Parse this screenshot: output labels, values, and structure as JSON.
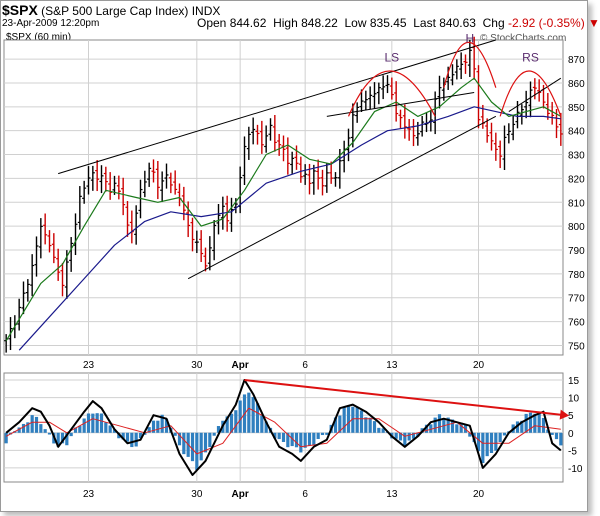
{
  "header": {
    "symbol": "$SPX",
    "name": "(S&P 500 Large Cap Index)",
    "exchange": "INDX",
    "timestamp": "23-Apr-2009 12:20pm",
    "quote": {
      "open_label": "Open",
      "open": "844.62",
      "high_label": "High",
      "high": "848.22",
      "low_label": "Low",
      "low": "835.45",
      "last_label": "Last",
      "last": "840.63",
      "chg_label": "Chg",
      "chg": "-2.92 (-0.35%)"
    },
    "chart_label": "$SPX (60 min)",
    "brand": "© StockCharts.com"
  },
  "colors": {
    "up_bar": "#000000",
    "down_bar": "#cc0000",
    "ma_short": "#1b7a1b",
    "ma_long": "#1a1a8c",
    "trendline": "#000000",
    "pattern": "#dd1111",
    "pattern_label": "#5a2d6e",
    "hist": "#2f7fbf",
    "macd_line": "#000000",
    "signal_line": "#dd2222",
    "arrow": "#dd1111",
    "grid": "#d0d0d0"
  },
  "chart_data": [
    {
      "type": "candlestick",
      "title": "$SPX (60 min)",
      "x_ticks": [
        "23",
        "30",
        "Apr",
        "6",
        "13",
        "20"
      ],
      "y_ticks": [
        750,
        760,
        770,
        780,
        790,
        800,
        810,
        820,
        830,
        840,
        850,
        860,
        870
      ],
      "ylim": [
        746,
        878
      ],
      "grid": true,
      "pattern_labels": [
        "LS",
        "H",
        "RS"
      ],
      "price_path": [
        [
          0,
          752
        ],
        [
          3,
          765
        ],
        [
          5,
          777
        ],
        [
          6,
          783
        ],
        [
          8,
          800
        ],
        [
          9,
          796
        ],
        [
          10,
          793
        ],
        [
          11,
          786
        ],
        [
          12,
          780
        ],
        [
          13,
          777
        ],
        [
          14,
          784
        ],
        [
          15,
          792
        ],
        [
          17,
          812
        ],
        [
          19,
          820
        ],
        [
          20,
          822
        ],
        [
          21,
          821
        ],
        [
          22,
          820
        ],
        [
          23,
          818
        ],
        [
          24,
          816
        ],
        [
          25,
          817
        ],
        [
          26,
          814
        ],
        [
          27,
          810
        ],
        [
          28,
          800
        ],
        [
          29,
          798
        ],
        [
          30,
          805
        ],
        [
          31,
          815
        ],
        [
          32,
          820
        ],
        [
          33,
          823
        ],
        [
          34,
          822
        ],
        [
          35,
          818
        ],
        [
          36,
          818
        ],
        [
          37,
          821
        ],
        [
          38,
          818
        ],
        [
          39,
          815
        ],
        [
          40,
          812
        ],
        [
          42,
          800
        ],
        [
          43,
          796
        ],
        [
          44,
          792
        ],
        [
          45,
          788
        ],
        [
          46,
          785
        ],
        [
          47,
          790
        ],
        [
          48,
          800
        ],
        [
          49,
          805
        ],
        [
          50,
          808
        ],
        [
          51,
          803
        ],
        [
          52,
          806
        ],
        [
          53,
          809
        ],
        [
          54,
          822
        ],
        [
          55,
          832
        ],
        [
          56,
          838
        ],
        [
          57,
          842
        ],
        [
          58,
          838
        ],
        [
          59,
          834
        ],
        [
          60,
          838
        ],
        [
          61,
          842
        ],
        [
          62,
          836
        ],
        [
          63,
          833
        ],
        [
          64,
          832
        ],
        [
          65,
          828
        ],
        [
          66,
          827
        ],
        [
          67,
          826
        ],
        [
          68,
          822
        ],
        [
          69,
          821
        ],
        [
          70,
          818
        ],
        [
          71,
          823
        ],
        [
          72,
          820
        ],
        [
          73,
          818
        ],
        [
          74,
          821
        ],
        [
          75,
          820
        ],
        [
          76,
          822
        ],
        [
          77,
          826
        ],
        [
          79,
          838
        ],
        [
          80,
          846
        ],
        [
          81,
          850
        ],
        [
          82,
          852
        ],
        [
          83,
          853
        ],
        [
          84,
          856
        ],
        [
          85,
          854
        ],
        [
          86,
          858
        ],
        [
          87,
          860
        ],
        [
          88,
          858
        ],
        [
          89,
          855
        ],
        [
          90,
          848
        ],
        [
          91,
          845
        ],
        [
          92,
          842
        ],
        [
          93,
          840
        ],
        [
          94,
          838
        ],
        [
          95,
          840
        ],
        [
          96,
          842
        ],
        [
          97,
          843
        ],
        [
          98,
          846
        ],
        [
          99,
          852
        ],
        [
          100,
          858
        ],
        [
          101,
          860
        ],
        [
          102,
          862
        ],
        [
          103,
          864
        ],
        [
          104,
          866
        ],
        [
          105,
          868
        ],
        [
          106,
          870
        ],
        [
          107,
          872
        ],
        [
          108,
          866
        ],
        [
          109,
          846
        ],
        [
          110,
          842
        ],
        [
          111,
          838
        ],
        [
          112,
          836
        ],
        [
          113,
          832
        ],
        [
          114,
          830
        ],
        [
          115,
          836
        ],
        [
          116,
          840
        ],
        [
          117,
          844
        ],
        [
          118,
          846
        ],
        [
          119,
          849
        ],
        [
          120,
          853
        ],
        [
          121,
          856
        ],
        [
          122,
          858
        ],
        [
          123,
          856
        ],
        [
          124,
          852
        ],
        [
          125,
          848
        ],
        [
          126,
          845
        ],
        [
          127,
          842
        ],
        [
          128,
          840
        ]
      ],
      "series": [
        {
          "name": "",
          "kind": "moving average (short)",
          "values": [
            [
              0,
              752
            ],
            [
              8,
              776
            ],
            [
              13,
              784
            ],
            [
              18,
              800
            ],
            [
              23,
              815
            ],
            [
              30,
              812
            ],
            [
              35,
              810
            ],
            [
              40,
              812
            ],
            [
              45,
              800
            ],
            [
              50,
              803
            ],
            [
              55,
              815
            ],
            [
              60,
              830
            ],
            [
              65,
              834
            ],
            [
              70,
              828
            ],
            [
              75,
              826
            ],
            [
              80,
              835
            ],
            [
              85,
              848
            ],
            [
              90,
              852
            ],
            [
              95,
              846
            ],
            [
              100,
              850
            ],
            [
              105,
              858
            ],
            [
              108,
              862
            ],
            [
              112,
              852
            ],
            [
              116,
              846
            ],
            [
              120,
              848
            ],
            [
              124,
              850
            ],
            [
              128,
              846
            ]
          ]
        },
        {
          "name": "",
          "kind": "moving average (long)",
          "values": [
            [
              3,
              748
            ],
            [
              10,
              762
            ],
            [
              18,
              778
            ],
            [
              25,
              792
            ],
            [
              32,
              802
            ],
            [
              38,
              806
            ],
            [
              45,
              804
            ],
            [
              52,
              806
            ],
            [
              60,
              818
            ],
            [
              68,
              823
            ],
            [
              75,
              826
            ],
            [
              82,
              834
            ],
            [
              88,
              840
            ],
            [
              95,
              842
            ],
            [
              102,
              846
            ],
            [
              108,
              850
            ],
            [
              113,
              848
            ],
            [
              118,
              846
            ],
            [
              124,
              846
            ],
            [
              128,
              845
            ]
          ]
        }
      ],
      "trendlines": [
        {
          "from": [
            12,
            822
          ],
          "to": [
            113,
            878
          ]
        },
        {
          "from": [
            42,
            778
          ],
          "to": [
            113,
            846
          ]
        },
        {
          "from": [
            74,
            846
          ],
          "to": [
            108,
            856
          ]
        },
        {
          "from": [
            116,
            848
          ],
          "to": [
            128,
            862
          ]
        }
      ]
    },
    {
      "type": "bar",
      "title": "",
      "x_ticks": [
        "23",
        "30",
        "Apr",
        "6",
        "13",
        "20"
      ],
      "y_ticks": [
        -10,
        -5,
        0,
        5,
        10,
        15
      ],
      "ylim": [
        -14,
        17
      ],
      "grid": true,
      "histogram": [
        [
          0,
          -3
        ],
        [
          2,
          1
        ],
        [
          4,
          2
        ],
        [
          6,
          5
        ],
        [
          8,
          3
        ],
        [
          10,
          -1
        ],
        [
          12,
          -4
        ],
        [
          14,
          -3
        ],
        [
          16,
          1
        ],
        [
          18,
          4
        ],
        [
          20,
          6
        ],
        [
          22,
          5
        ],
        [
          24,
          2
        ],
        [
          26,
          -1
        ],
        [
          28,
          -3
        ],
        [
          30,
          -4
        ],
        [
          32,
          0
        ],
        [
          34,
          3
        ],
        [
          36,
          5
        ],
        [
          38,
          2
        ],
        [
          40,
          -4
        ],
        [
          42,
          -7
        ],
        [
          44,
          -10
        ],
        [
          46,
          -6
        ],
        [
          48,
          -1
        ],
        [
          50,
          4
        ],
        [
          52,
          5
        ],
        [
          54,
          9
        ],
        [
          56,
          12
        ],
        [
          58,
          8
        ],
        [
          60,
          3
        ],
        [
          62,
          -1
        ],
        [
          64,
          -3
        ],
        [
          66,
          -4
        ],
        [
          68,
          -5
        ],
        [
          70,
          -4
        ],
        [
          72,
          -2
        ],
        [
          74,
          0
        ],
        [
          76,
          4
        ],
        [
          78,
          7
        ],
        [
          80,
          8
        ],
        [
          82,
          6
        ],
        [
          84,
          4
        ],
        [
          86,
          2
        ],
        [
          88,
          0
        ],
        [
          90,
          -2
        ],
        [
          92,
          -3
        ],
        [
          94,
          -2
        ],
        [
          96,
          1
        ],
        [
          98,
          3
        ],
        [
          100,
          5
        ],
        [
          102,
          4
        ],
        [
          104,
          3
        ],
        [
          106,
          2
        ],
        [
          108,
          -3
        ],
        [
          110,
          -8
        ],
        [
          112,
          -6
        ],
        [
          114,
          -3
        ],
        [
          116,
          1
        ],
        [
          118,
          3
        ],
        [
          120,
          5
        ],
        [
          122,
          6
        ],
        [
          124,
          4
        ],
        [
          126,
          -1
        ],
        [
          128,
          -3
        ]
      ],
      "series": [
        {
          "name": "",
          "kind": "MACD line",
          "values": [
            [
              0,
              0
            ],
            [
              3,
              3
            ],
            [
              6,
              7
            ],
            [
              8,
              6
            ],
            [
              10,
              2
            ],
            [
              12,
              -4
            ],
            [
              15,
              1
            ],
            [
              18,
              6
            ],
            [
              20,
              9
            ],
            [
              22,
              7
            ],
            [
              25,
              1
            ],
            [
              28,
              -3
            ],
            [
              31,
              -2
            ],
            [
              34,
              5
            ],
            [
              37,
              4
            ],
            [
              40,
              -6
            ],
            [
              43,
              -12
            ],
            [
              46,
              -8
            ],
            [
              50,
              2
            ],
            [
              53,
              8
            ],
            [
              55,
              15
            ],
            [
              57,
              11
            ],
            [
              60,
              3
            ],
            [
              63,
              -4
            ],
            [
              66,
              -6
            ],
            [
              68,
              -8
            ],
            [
              71,
              -4
            ],
            [
              74,
              -2
            ],
            [
              77,
              7
            ],
            [
              80,
              8
            ],
            [
              83,
              6
            ],
            [
              86,
              3
            ],
            [
              89,
              -1
            ],
            [
              92,
              -4
            ],
            [
              95,
              -1
            ],
            [
              98,
              3
            ],
            [
              101,
              4
            ],
            [
              104,
              3
            ],
            [
              107,
              2
            ],
            [
              110,
              -10
            ],
            [
              113,
              -6
            ],
            [
              116,
              0
            ],
            [
              119,
              3
            ],
            [
              122,
              5
            ],
            [
              124,
              6
            ],
            [
              126,
              -3
            ],
            [
              128,
              -5
            ]
          ]
        },
        {
          "name": "",
          "kind": "signal line",
          "values": [
            [
              0,
              -1
            ],
            [
              6,
              3
            ],
            [
              10,
              3
            ],
            [
              14,
              0
            ],
            [
              20,
              4
            ],
            [
              26,
              2
            ],
            [
              32,
              0
            ],
            [
              38,
              2
            ],
            [
              44,
              -6
            ],
            [
              50,
              -3
            ],
            [
              56,
              7
            ],
            [
              62,
              3
            ],
            [
              68,
              -4
            ],
            [
              74,
              -3
            ],
            [
              80,
              4
            ],
            [
              86,
              4
            ],
            [
              92,
              -1
            ],
            [
              98,
              1
            ],
            [
              104,
              3
            ],
            [
              110,
              -3
            ],
            [
              116,
              -3
            ],
            [
              122,
              2
            ],
            [
              128,
              1
            ]
          ]
        }
      ],
      "arrow": {
        "from": [
          55,
          15
        ],
        "to": [
          129,
          5
        ]
      }
    }
  ]
}
